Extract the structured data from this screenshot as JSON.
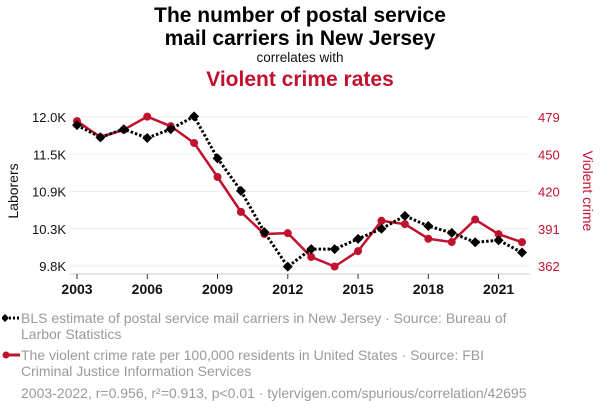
{
  "header": {
    "title_line1": "The number of postal service",
    "title_line2": "mail carriers in New Jersey",
    "subtitle": "correlates with",
    "title2": "Violent crime rates"
  },
  "colors": {
    "series1": "#000000",
    "series2": "#c0112e",
    "grid": "#eeeeee",
    "legend_text": "#9a9a9a"
  },
  "chart_data": {
    "type": "line",
    "title": "The number of postal service mail carriers in New Jersey correlates with Violent crime rates",
    "x": [
      2003,
      2004,
      2005,
      2006,
      2007,
      2008,
      2009,
      2010,
      2011,
      2012,
      2013,
      2014,
      2015,
      2016,
      2017,
      2018,
      2019,
      2020,
      2021,
      2022
    ],
    "x_ticks": [
      "2003",
      "2006",
      "2009",
      "2012",
      "2015",
      "2018",
      "2021"
    ],
    "xlim": [
      2003,
      2022
    ],
    "y_left": {
      "label": "Laborers",
      "ticks": [
        "12.0K",
        "11.5K",
        "10.9K",
        "10.3K",
        "9.8K"
      ],
      "ylim": [
        9800,
        12000
      ]
    },
    "y_right": {
      "label": "Violent crime",
      "ticks": [
        "479",
        "450",
        "420",
        "391",
        "362"
      ],
      "ylim": [
        362,
        479
      ]
    },
    "grid": true,
    "series": [
      {
        "name": "BLS estimate of postal service mail carriers in New Jersey",
        "axis": "left",
        "style": "dotted-diamond",
        "values": [
          11880,
          11700,
          11820,
          11690,
          11820,
          12010,
          11390,
          10910,
          10300,
          9790,
          10050,
          10050,
          10200,
          10350,
          10540,
          10390,
          10290,
          10150,
          10180,
          10000
        ]
      },
      {
        "name": "The violent crime rate per 100,000 residents in United States",
        "axis": "right",
        "style": "solid-circle",
        "values": [
          475.8,
          463.2,
          469.0,
          479.3,
          471.8,
          458.6,
          431.9,
          404.5,
          387.1,
          387.8,
          369.1,
          361.6,
          373.7,
          397.5,
          394.9,
          383.4,
          380.8,
          398.5,
          387.0,
          380.7
        ]
      }
    ]
  },
  "legend": {
    "items": [
      {
        "text": "BLS estimate of postal service mail carriers in New Jersey · Source: Bureau of Larbor Statistics",
        "icon": "black-dotted-diamond-line"
      },
      {
        "text": "The violent crime rate per 100,000 residents in United States · Source: FBI Criminal Justice Information Services",
        "icon": "red-solid-circle-line"
      }
    ]
  },
  "footer": {
    "text": "2003-2022, r=0.956, r²=0.913, p<0.01 · tylervigen.com/spurious/correlation/42695"
  }
}
